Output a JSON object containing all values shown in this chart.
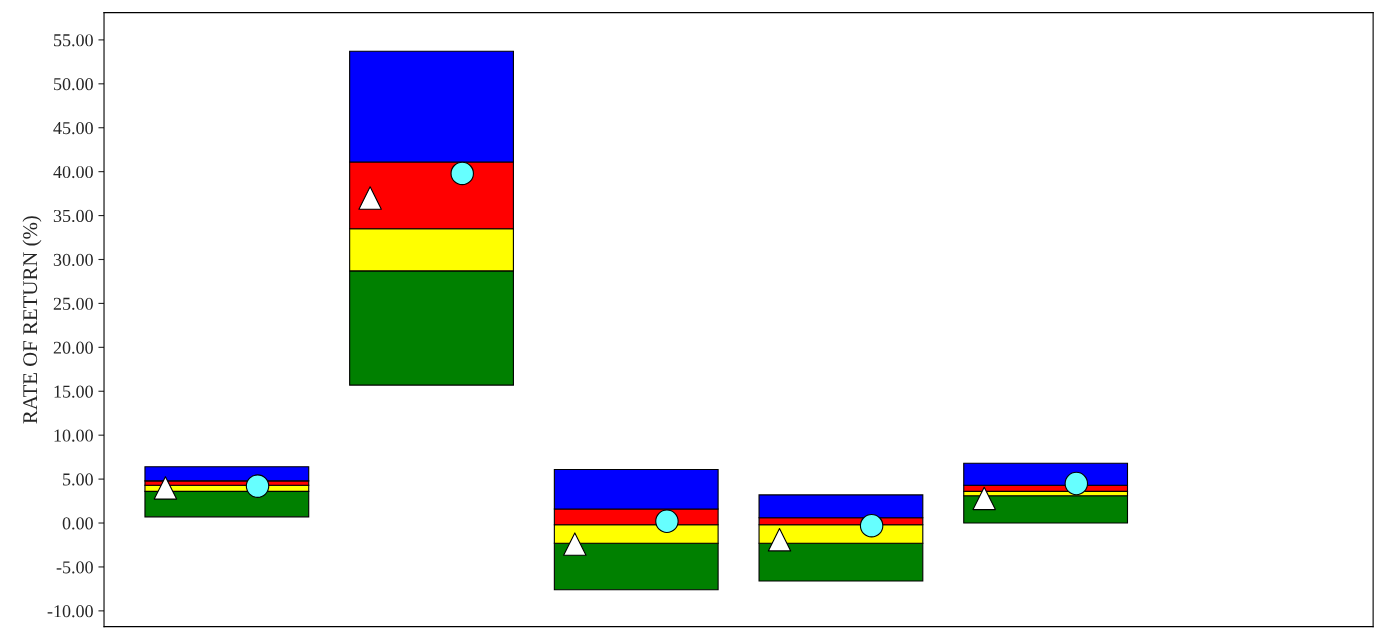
{
  "chart_data": {
    "type": "bar",
    "ylabel": "RATE OF RETURN (%)",
    "categories": [
      null,
      null,
      null,
      null,
      null,
      null
    ],
    "series": [
      {
        "color": "#008000",
        "base": [
          0.7,
          15.7,
          -7.6,
          -6.6,
          0.0,
          null
        ],
        "values": [
          2.9,
          13.0,
          5.3,
          4.3,
          3.1,
          null
        ]
      },
      {
        "color": "#ffff00",
        "base": [
          3.6,
          28.7,
          -2.3,
          -2.3,
          3.1,
          null
        ],
        "values": [
          0.7,
          4.8,
          2.1,
          2.1,
          0.5,
          null
        ]
      },
      {
        "color": "#ff0000",
        "base": [
          4.3,
          33.5,
          -0.2,
          -0.2,
          3.6,
          null
        ],
        "values": [
          0.5,
          7.6,
          1.8,
          0.8,
          0.7,
          null
        ]
      },
      {
        "color": "#0000ff",
        "base": [
          4.8,
          41.1,
          1.6,
          0.6,
          4.3,
          null
        ],
        "values": [
          1.6,
          12.6,
          4.5,
          2.6,
          2.5,
          null
        ]
      },
      {
        "type": "scatter",
        "marker": "triangle",
        "color": "#ffffff",
        "values": [
          4.0,
          37.0,
          -2.4,
          -1.9,
          2.8,
          null
        ]
      },
      {
        "type": "scatter",
        "marker": "circle",
        "color": "#66ffff",
        "values": [
          4.2,
          39.8,
          0.2,
          -0.3,
          4.5,
          null
        ]
      }
    ],
    "ylim": [
      -11.8,
      58.1
    ],
    "yticks": [
      {
        "value": -10,
        "label": "-10.00"
      },
      {
        "value": -5,
        "label": "-5.00"
      },
      {
        "value": 0,
        "label": "0.00"
      },
      {
        "value": 5,
        "label": "5.00"
      },
      {
        "value": 10,
        "label": "10.00"
      },
      {
        "value": 15,
        "label": "15.00"
      },
      {
        "value": 20,
        "label": "20.00"
      },
      {
        "value": 25,
        "label": "25.00"
      },
      {
        "value": 30,
        "label": "30.00"
      },
      {
        "value": 35,
        "label": "35.00"
      },
      {
        "value": 40,
        "label": "40.00"
      },
      {
        "value": 45,
        "label": "45.00"
      },
      {
        "value": 50,
        "label": "50.00"
      },
      {
        "value": 55,
        "label": "55.00"
      }
    ],
    "tick_labels": "y",
    "grid": false,
    "legend": false
  }
}
